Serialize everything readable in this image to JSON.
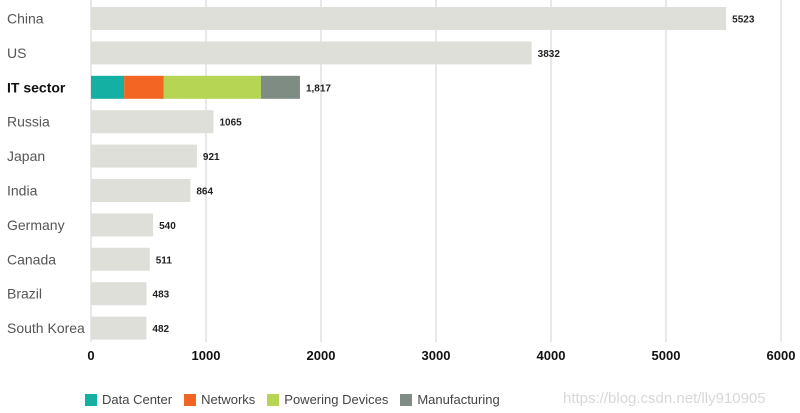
{
  "chart_data": {
    "type": "bar",
    "orientation": "horizontal",
    "title": "",
    "xlabel": "",
    "ylabel": "",
    "xlim": [
      0,
      6000
    ],
    "x_ticks": [
      "0",
      "1000",
      "2000",
      "3000",
      "4000",
      "5000",
      "6000"
    ],
    "grid": true,
    "legend_position": "bottom",
    "categories": [
      "China",
      "US",
      "IT sector",
      "Russia",
      "Japan",
      "India",
      "Germany",
      "Canada",
      "Brazil",
      "South Korea"
    ],
    "values": [
      5523,
      3832,
      1817,
      1065,
      921,
      864,
      540,
      511,
      483,
      482
    ],
    "value_labels": [
      "5523",
      "3832",
      "1,817",
      "1065",
      "921",
      "864",
      "540",
      "511",
      "483",
      "482"
    ],
    "highlight_category": "IT sector",
    "default_color": "#dfdfda",
    "stacked_series": [
      {
        "name": "Data Center",
        "value": 288,
        "color": "#14b0a4"
      },
      {
        "name": "Networks",
        "value": 345,
        "color": "#f26522"
      },
      {
        "name": "Powering Devices",
        "value": 845,
        "color": "#b6d554"
      },
      {
        "name": "Manufacturing",
        "value": 339,
        "color": "#7f8c83"
      }
    ]
  },
  "watermark": "https://blog.csdn.net/lly910905"
}
